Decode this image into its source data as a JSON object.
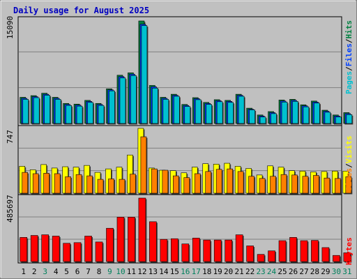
{
  "title": "Daily usage for August 2025",
  "colors": {
    "title": "#0000c0",
    "hits": "#008040",
    "files": "#0040ff",
    "pages": "#00c0d0",
    "visits": "#ffff00",
    "sites": "#ff8000",
    "kbytes": "#ff0000",
    "weekend_label": "#00805c",
    "panel_bg": "#c0c0c0"
  },
  "chart_data": [
    {
      "type": "bar",
      "name": "hits-files-pages",
      "max_label": "15090",
      "ylim": [
        0,
        15090
      ],
      "right_label": [
        "Pages",
        "Files",
        "Hits"
      ],
      "categories": [
        "1",
        "2",
        "3",
        "4",
        "5",
        "6",
        "7",
        "8",
        "9",
        "10",
        "11",
        "12",
        "13",
        "14",
        "15",
        "16",
        "17",
        "18",
        "19",
        "20",
        "21",
        "22",
        "23",
        "24",
        "25",
        "26",
        "27",
        "28",
        "29",
        "30",
        "31"
      ],
      "weekend": [
        false,
        false,
        true,
        false,
        false,
        false,
        false,
        false,
        true,
        true,
        false,
        false,
        false,
        false,
        false,
        true,
        true,
        false,
        false,
        false,
        false,
        false,
        true,
        true,
        false,
        false,
        false,
        false,
        false,
        true,
        true
      ],
      "series": [
        {
          "name": "Hits",
          "values": [
            3850,
            4100,
            4450,
            3850,
            2950,
            2850,
            3400,
            2950,
            5100,
            7100,
            7450,
            15090,
            5600,
            3850,
            4300,
            2800,
            3800,
            3100,
            3500,
            3400,
            4300,
            2250,
            1250,
            1750,
            3450,
            3550,
            2750,
            3300,
            1950,
            1250,
            1600
          ]
        },
        {
          "name": "Files",
          "values": [
            3700,
            3950,
            4300,
            3700,
            2800,
            2700,
            3250,
            2800,
            4950,
            6900,
            7250,
            14600,
            5400,
            3700,
            4150,
            2650,
            3650,
            2950,
            3350,
            3250,
            4150,
            2100,
            1100,
            1600,
            3300,
            3400,
            2600,
            3150,
            1800,
            1100,
            1450
          ]
        },
        {
          "name": "Pages",
          "values": [
            3550,
            3800,
            4150,
            3550,
            2650,
            2550,
            3100,
            2650,
            4800,
            6700,
            7050,
            14400,
            5200,
            3550,
            4000,
            2500,
            3500,
            2800,
            3200,
            3100,
            4000,
            2000,
            950,
            1450,
            3150,
            3250,
            2450,
            3000,
            1650,
            950,
            1300
          ]
        }
      ]
    },
    {
      "type": "bar",
      "name": "visits-sites",
      "max_label": "747",
      "ylim": [
        0,
        747
      ],
      "right_label": [
        "Sites",
        "Visits"
      ],
      "series": [
        {
          "name": "Visits",
          "values": [
            310,
            270,
            330,
            290,
            305,
            300,
            320,
            240,
            280,
            300,
            440,
            747,
            290,
            265,
            260,
            235,
            300,
            340,
            335,
            345,
            310,
            285,
            210,
            315,
            300,
            260,
            255,
            245,
            250,
            255,
            255
          ]
        },
        {
          "name": "Sites",
          "values": [
            240,
            225,
            230,
            225,
            190,
            215,
            200,
            160,
            165,
            160,
            220,
            650,
            280,
            265,
            200,
            180,
            225,
            250,
            275,
            280,
            250,
            195,
            170,
            195,
            215,
            210,
            195,
            205,
            175,
            170,
            190
          ]
        }
      ]
    },
    {
      "type": "bar",
      "name": "kbytes",
      "max_label": "485697",
      "ylim": [
        0,
        485697
      ],
      "right_label": [
        "KBytes"
      ],
      "series": [
        {
          "name": "KBytes",
          "values": [
            185000,
            200000,
            205000,
            195000,
            140000,
            145000,
            195000,
            150000,
            255000,
            340000,
            340000,
            485697,
            305000,
            170000,
            175000,
            135000,
            180000,
            165000,
            165000,
            165000,
            205000,
            120000,
            55000,
            82000,
            160000,
            185000,
            160000,
            162000,
            107000,
            47000,
            67000
          ]
        }
      ]
    }
  ]
}
